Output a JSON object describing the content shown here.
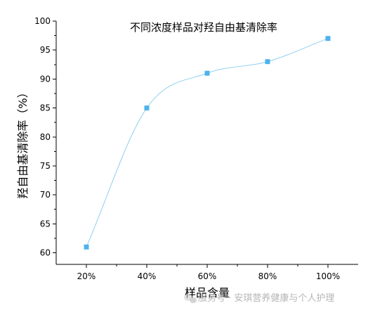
{
  "chart_data": {
    "type": "line",
    "title": "不同浓度样品对羟自由基清除率",
    "xlabel": "样品含量",
    "ylabel": "羟自由基清除率（%）",
    "categories": [
      "20%",
      "40%",
      "60%",
      "80%",
      "100%"
    ],
    "series": [
      {
        "values": [
          61,
          85,
          91,
          93,
          97
        ],
        "marker_color": "#4db3ec",
        "line_color": "#8fd0f0"
      }
    ],
    "ylim": [
      58,
      100
    ],
    "yticks": [
      60,
      65,
      70,
      75,
      80,
      85,
      90,
      95,
      100
    ],
    "smooth": true,
    "grid": false,
    "legend": "none"
  },
  "watermark": {
    "text": "服务号 · 安琪营养健康与个人护理",
    "icon": "wechat-bubble-icon"
  }
}
